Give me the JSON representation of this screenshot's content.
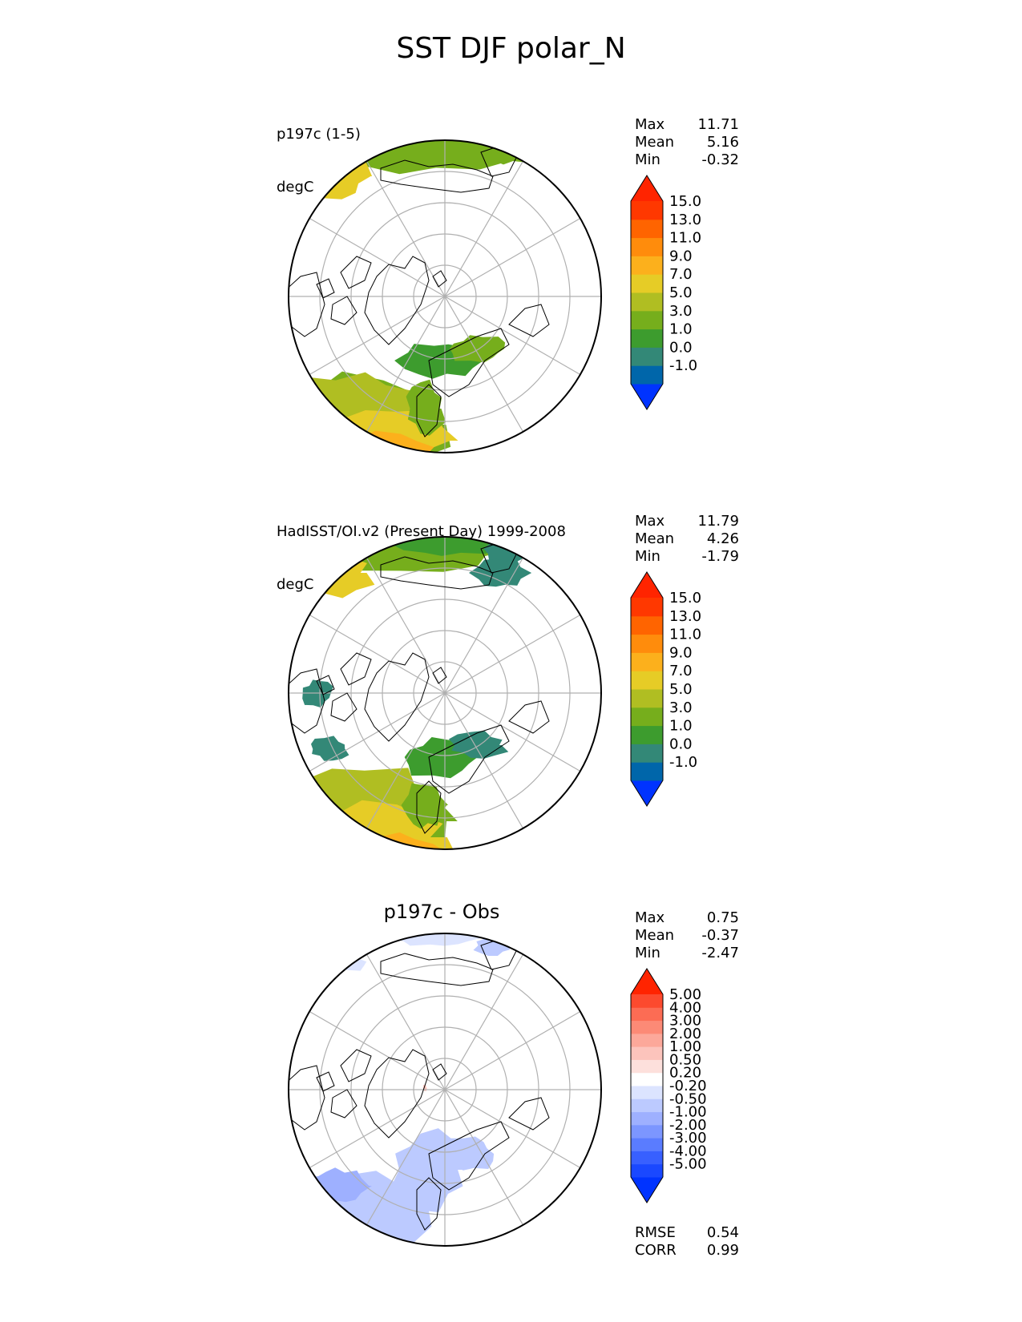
{
  "figure": {
    "title": "SST DJF polar_N"
  },
  "panels": [
    {
      "label_line1": "p197c (1-5)",
      "label_line2": "degC",
      "center_title": "",
      "stats": [
        {
          "name": "Max",
          "value": "11.71"
        },
        {
          "name": "Mean",
          "value": "5.16"
        },
        {
          "name": "Min",
          "value": "-0.32"
        }
      ],
      "colorbar": {
        "colors": [
          "#0033ff",
          "#0066aa",
          "#338877",
          "#3d9c2e",
          "#76ae1c",
          "#b0be22",
          "#e6cc26",
          "#fcb01c",
          "#ff8c0c",
          "#ff6400",
          "#ff3800",
          "#ff2400"
        ],
        "ticks": [
          "-1.0",
          "0.0",
          "1.0",
          "3.0",
          "5.0",
          "7.0",
          "9.0",
          "11.0",
          "13.0",
          "15.0"
        ]
      },
      "extra_stats": []
    },
    {
      "label_line1": "HadISST/OI.v2 (Present Day) 1999-2008",
      "label_line2": "degC",
      "center_title": "",
      "stats": [
        {
          "name": "Max",
          "value": "11.79"
        },
        {
          "name": "Mean",
          "value": "4.26"
        },
        {
          "name": "Min",
          "value": "-1.79"
        }
      ],
      "colorbar": {
        "colors": [
          "#0033ff",
          "#0066aa",
          "#338877",
          "#3d9c2e",
          "#76ae1c",
          "#b0be22",
          "#e6cc26",
          "#fcb01c",
          "#ff8c0c",
          "#ff6400",
          "#ff3800",
          "#ff2400"
        ],
        "ticks": [
          "-1.0",
          "0.0",
          "1.0",
          "3.0",
          "5.0",
          "7.0",
          "9.0",
          "11.0",
          "13.0",
          "15.0"
        ]
      },
      "extra_stats": []
    },
    {
      "label_line1": "",
      "label_line2": "",
      "center_title": "p197c - Obs",
      "stats": [
        {
          "name": "Max",
          "value": "0.75"
        },
        {
          "name": "Mean",
          "value": "-0.37"
        },
        {
          "name": "Min",
          "value": "-2.47"
        }
      ],
      "colorbar": {
        "colors": [
          "#0033ff",
          "#1a48ff",
          "#3860ff",
          "#5a7cff",
          "#7c96ff",
          "#9eb0ff",
          "#bccaff",
          "#dce4ff",
          "#ffffff",
          "#fde0dc",
          "#fcc4bc",
          "#fca89a",
          "#fc8a76",
          "#fc6c54",
          "#fc4a2e",
          "#ff2400"
        ],
        "ticks": [
          "-5.00",
          "-4.00",
          "-3.00",
          "-2.00",
          "-1.00",
          "-0.50",
          "-0.20",
          "0.20",
          "0.50",
          "1.00",
          "2.00",
          "3.00",
          "4.00",
          "5.00"
        ]
      },
      "extra_stats": [
        {
          "name": "RMSE",
          "value": "0.54"
        },
        {
          "name": "CORR",
          "value": "0.99"
        }
      ]
    }
  ],
  "chart_data": {
    "type": "heatmap",
    "projection": "north polar stereographic",
    "variable": "SST",
    "season": "DJF",
    "units": "degC",
    "grid": true,
    "panels": [
      {
        "name": "p197c (1-5)",
        "max": 11.71,
        "mean": 5.16,
        "min": -0.32,
        "levels": [
          -1.0,
          0.0,
          1.0,
          3.0,
          5.0,
          7.0,
          9.0,
          11.0,
          13.0,
          15.0
        ]
      },
      {
        "name": "HadISST/OI.v2 (Present Day) 1999-2008",
        "max": 11.79,
        "mean": 4.26,
        "min": -1.79,
        "levels": [
          -1.0,
          0.0,
          1.0,
          3.0,
          5.0,
          7.0,
          9.0,
          11.0,
          13.0,
          15.0
        ]
      },
      {
        "name": "p197c - Obs",
        "max": 0.75,
        "mean": -0.37,
        "min": -2.47,
        "rmse": 0.54,
        "corr": 0.99,
        "levels": [
          -5.0,
          -4.0,
          -3.0,
          -2.0,
          -1.0,
          -0.5,
          -0.2,
          0.2,
          0.5,
          1.0,
          2.0,
          3.0,
          4.0,
          5.0
        ]
      }
    ]
  }
}
